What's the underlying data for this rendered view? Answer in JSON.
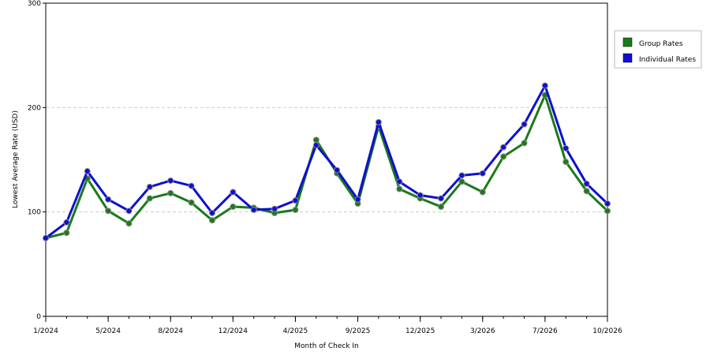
{
  "chart_data": {
    "type": "line",
    "xlabel": "Month of Check In",
    "ylabel": "Lowest Average Rate (USD)",
    "ylim": [
      0,
      300
    ],
    "yticks": [
      "0",
      "100",
      "200",
      "300"
    ],
    "x_tick_labels": [
      "1/2024",
      "5/2024",
      "8/2024",
      "12/2024",
      "4/2025",
      "9/2025",
      "12/2025",
      "3/2026",
      "7/2026",
      "10/2026"
    ],
    "x_tick_positions": [
      0,
      3,
      6,
      9,
      12,
      15,
      18,
      21,
      24,
      27
    ],
    "grid": "horizontal dashed",
    "legend_placement": "right",
    "series": [
      {
        "name": "Group Rates",
        "color": "#1a7a1a",
        "values": [
          75,
          80,
          132,
          101,
          89,
          113,
          118,
          109,
          92,
          105,
          104,
          99,
          102,
          169,
          137,
          108,
          182,
          122,
          113,
          105,
          129,
          119,
          153,
          166,
          212,
          148,
          120,
          101
        ]
      },
      {
        "name": "Individual Rates",
        "color": "#0f0fcf",
        "values": [
          75,
          90,
          139,
          112,
          101,
          124,
          130,
          125,
          99,
          119,
          102,
          103,
          111,
          164,
          140,
          112,
          186,
          129,
          116,
          113,
          135,
          137,
          162,
          184,
          221,
          161,
          127,
          108
        ]
      }
    ]
  }
}
